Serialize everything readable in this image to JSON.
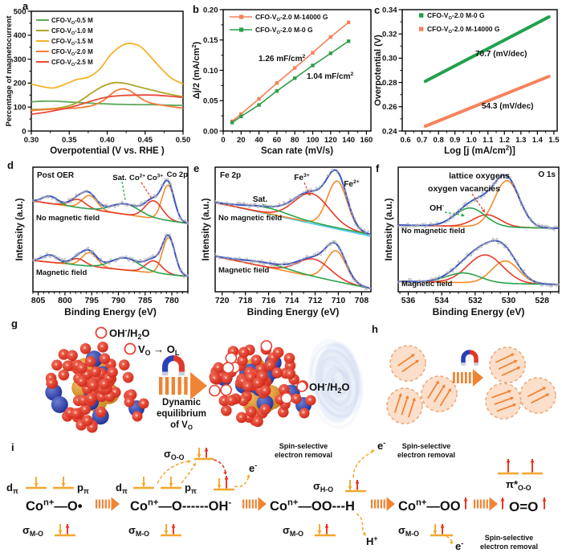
{
  "colors": {
    "blue": "#3d55c4",
    "orange": "#f28a28",
    "red": "#e83a28",
    "green": "#2aa34a",
    "cyan": "#45c8e8",
    "gray_dots": "#b0b0b0",
    "level_yellow": "#f2a72e",
    "arrow_red": "#e8301c",
    "block_arrow": "#ee8434",
    "peach_fill": "#fbdfca",
    "peach_stroke": "#efa97c"
  },
  "chart_data": [
    {
      "type": "line",
      "letter": "a",
      "xlabel": "Overpotential (V vs. RHE )",
      "ylabel": "Percentage of magnetocurrent",
      "xlim": [
        0.3,
        0.5
      ],
      "ylim": [
        0,
        500
      ],
      "xticks": [
        0.3,
        0.35,
        0.4,
        0.45,
        0.5
      ],
      "xminor": 0.025,
      "yticks": [
        0,
        100,
        200,
        300,
        400,
        500
      ],
      "yminor": 50,
      "series": [
        {
          "label": "CFO-V_{O}-0.5 M",
          "color": "#5fa85c",
          "pts": [
            [
              0.3,
              122
            ],
            [
              0.32,
              125
            ],
            [
              0.34,
              123
            ],
            [
              0.36,
              119
            ],
            [
              0.38,
              116
            ],
            [
              0.4,
              113
            ],
            [
              0.42,
              111
            ],
            [
              0.44,
              110
            ],
            [
              0.46,
              110
            ],
            [
              0.48,
              108
            ],
            [
              0.5,
              107
            ]
          ]
        },
        {
          "label": "CFO-V_{O}-1.0 M",
          "color": "#b0a62b",
          "pts": [
            [
              0.3,
              90
            ],
            [
              0.32,
              92
            ],
            [
              0.34,
              98
            ],
            [
              0.36,
              118
            ],
            [
              0.38,
              160
            ],
            [
              0.395,
              188
            ],
            [
              0.41,
              202
            ],
            [
              0.425,
              198
            ],
            [
              0.44,
              186
            ],
            [
              0.46,
              170
            ],
            [
              0.48,
              155
            ],
            [
              0.5,
              143
            ]
          ]
        },
        {
          "label": "CFO-V_{O}-1.5 M",
          "color": "#f6b32b",
          "pts": [
            [
              0.3,
              196
            ],
            [
              0.315,
              185
            ],
            [
              0.33,
              180
            ],
            [
              0.345,
              196
            ],
            [
              0.36,
              215
            ],
            [
              0.375,
              225
            ],
            [
              0.39,
              258
            ],
            [
              0.405,
              320
            ],
            [
              0.42,
              358
            ],
            [
              0.432,
              365
            ],
            [
              0.445,
              350
            ],
            [
              0.46,
              300
            ],
            [
              0.472,
              258
            ],
            [
              0.485,
              220
            ],
            [
              0.5,
              196
            ]
          ]
        },
        {
          "label": "CFO-V_{O}-2.0 M",
          "color": "#f07e3a",
          "pts": [
            [
              0.3,
              85
            ],
            [
              0.32,
              90
            ],
            [
              0.34,
              93
            ],
            [
              0.36,
              96
            ],
            [
              0.38,
              106
            ],
            [
              0.395,
              128
            ],
            [
              0.41,
              165
            ],
            [
              0.42,
              176
            ],
            [
              0.43,
              168
            ],
            [
              0.44,
              146
            ],
            [
              0.45,
              126
            ],
            [
              0.46,
              115
            ],
            [
              0.48,
              104
            ],
            [
              0.5,
              95
            ]
          ]
        },
        {
          "label": "CFO-V_{O}-2.5 M",
          "color": "#e84a38",
          "pts": [
            [
              0.3,
              70
            ],
            [
              0.32,
              79
            ],
            [
              0.34,
              91
            ],
            [
              0.36,
              106
            ],
            [
              0.38,
              126
            ],
            [
              0.4,
              142
            ],
            [
              0.42,
              148
            ],
            [
              0.44,
              150
            ],
            [
              0.46,
              150
            ],
            [
              0.48,
              146
            ],
            [
              0.5,
              140
            ]
          ]
        }
      ]
    },
    {
      "type": "scatter-line",
      "letter": "b",
      "xlabel": "Scan rate (mV/s)",
      "ylabel": "Δj/2 (mA/cm^{2})",
      "xlim": [
        0,
        165
      ],
      "ylim": [
        0,
        0.2
      ],
      "xticks": [
        0,
        20,
        40,
        60,
        80,
        100,
        120,
        140,
        160
      ],
      "xminor": 10,
      "yticks": [
        0.0,
        0.05,
        0.1,
        0.15,
        0.2
      ],
      "yminor": 0.025,
      "series": [
        {
          "label": "CFO-V_{O}-2.0 M-14000 G",
          "color": "#f5815a",
          "x": [
            10,
            20,
            40,
            60,
            80,
            100,
            120,
            140
          ],
          "y": [
            0.016,
            0.028,
            0.053,
            0.079,
            0.104,
            0.129,
            0.155,
            0.179
          ],
          "annotation": "1.26 mF/cm^{2}"
        },
        {
          "label": "CFO-V_{O}-2.0 M-0 G",
          "color": "#2f9e49",
          "x": [
            10,
            20,
            40,
            60,
            80,
            100,
            120,
            140
          ],
          "y": [
            0.014,
            0.024,
            0.043,
            0.066,
            0.087,
            0.108,
            0.128,
            0.148
          ],
          "annotation": "1.04 mF/cm^{2}"
        }
      ]
    },
    {
      "type": "line",
      "letter": "c",
      "xlabel": "Log [j (mA/cm^{2})]",
      "ylabel": "Overpotential (V)",
      "xlim": [
        0.58,
        1.52
      ],
      "ylim": [
        0.24,
        0.34
      ],
      "xticks": [
        0.6,
        0.7,
        0.8,
        0.9,
        1.0,
        1.1,
        1.2,
        1.3,
        1.4,
        1.5
      ],
      "xminor": 0.05,
      "yticks": [
        0.24,
        0.26,
        0.28,
        0.3,
        0.32,
        0.34
      ],
      "yminor": 0.01,
      "series": [
        {
          "label": "CFO-V_{O}-2.0 M-0 G",
          "color": "#22a04c",
          "x": [
            0.72,
            1.47
          ],
          "y": [
            0.281,
            0.334
          ],
          "annotation": "70.7 (mV/dec)"
        },
        {
          "label": "CFO-V_{O}-2.0 M-14000 G",
          "color": "#f5835c",
          "x": [
            0.72,
            1.47
          ],
          "y": [
            0.244,
            0.285
          ],
          "annotation": "54.3 (mV/dec)"
        }
      ]
    },
    {
      "type": "xps",
      "letter": "d",
      "title_left": "Post OER",
      "title_right": "Co 2p",
      "xlabel": "Binding Energy (eV)",
      "ylabel": "Intensity (a.u.)",
      "xlim": [
        806,
        777
      ],
      "xticks": [
        805,
        800,
        795,
        790,
        785,
        780
      ],
      "xminor": 1,
      "ann": [
        {
          "text": "Sat.",
          "color": "#2aa34a"
        },
        {
          "text": "Co^{2+}",
          "color": "#e83a28"
        },
        {
          "text": "Co^{3+}",
          "color": "#f28a28"
        }
      ],
      "groups": [
        {
          "name": "No magnetic field",
          "base": [
            54,
            82
          ],
          "labelY": 78,
          "comps": [
            {
              "color": "#f28a28",
              "peaks": [
                [
                  780.7,
                  1.15,
                  44
                ],
                [
                  795.4,
                  1.4,
                  17
                ]
              ]
            },
            {
              "color": "#e83a28",
              "peaks": [
                [
                  783.4,
                  1.6,
                  22
                ],
                [
                  797.6,
                  1.5,
                  10
                ]
              ]
            },
            {
              "color": "#2aa34a",
              "peaks": [
                [
                  788.7,
                  2.6,
                  13
                ],
                [
                  802.8,
                  1.4,
                  9
                ]
              ]
            }
          ]
        },
        {
          "name": "Magnetic field",
          "base": [
            128,
            148
          ],
          "labelY": 146,
          "comps": [
            {
              "color": "#f28a28",
              "peaks": [
                [
                  780.6,
                  1.15,
                  46
                ],
                [
                  795.4,
                  1.4,
                  17
                ]
              ]
            },
            {
              "color": "#e83a28",
              "peaks": [
                [
                  783.4,
                  1.5,
                  15
                ],
                [
                  797.6,
                  1.4,
                  8
                ]
              ]
            },
            {
              "color": "#2aa34a",
              "peaks": [
                [
                  788.7,
                  2.6,
                  15
                ],
                [
                  802.8,
                  1.4,
                  9
                ]
              ]
            }
          ]
        }
      ]
    },
    {
      "type": "xps",
      "letter": "e",
      "title_left": "Fe 2p",
      "title_right": "",
      "xlabel": "Binding Energy (eV)",
      "ylabel": "Intensity (a.u.)",
      "xlim": [
        720.6,
        707.2
      ],
      "xticks": [
        720,
        718,
        716,
        714,
        712,
        710,
        708
      ],
      "xminor": 1,
      "ann": [
        {
          "text": "Sat.",
          "color": "#2aa34a"
        },
        {
          "text": "Fe^{3+}",
          "color": "#e83a28"
        },
        {
          "text": "Fe^{2+}",
          "color": "#f28a28"
        }
      ],
      "groups": [
        {
          "name": "No magnetic field",
          "base": [
            56,
            96
          ],
          "labelY": 78,
          "cyan": true,
          "comps": [
            {
              "color": "#f28a28",
              "peaks": [
                [
                  710.1,
                  0.85,
                  58
                ]
              ]
            },
            {
              "color": "#e83a28",
              "peaks": [
                [
                  712.3,
                  1.5,
                  36
                ]
              ]
            },
            {
              "color": "#2aa34a",
              "peaks": [
                [
                  716.2,
                  1.9,
                  7
                ]
              ]
            }
          ]
        },
        {
          "name": "Magnetic field",
          "base": [
            123,
            163
          ],
          "labelY": 143,
          "comps": [
            {
              "color": "#f28a28",
              "peaks": [
                [
                  710.2,
                  0.85,
                  38
                ]
              ]
            },
            {
              "color": "#e83a28",
              "peaks": [
                [
                  712.1,
                  1.4,
                  22
                ]
              ]
            },
            {
              "color": "#2aa34a",
              "peaks": [
                [
                  716.2,
                  1.9,
                  5
                ]
              ]
            }
          ]
        }
      ]
    },
    {
      "type": "xps",
      "letter": "f",
      "title_left": "",
      "title_right": "O 1s",
      "xlabel": "Binding Energy (eV)",
      "ylabel": "Intensity (a.u.)",
      "xlim": [
        536.6,
        527.0
      ],
      "xticks": [
        536,
        534,
        532,
        530,
        528
      ],
      "xminor": 0.5,
      "ann": [
        {
          "text": "lattice oxygens",
          "color": "#f28a28"
        },
        {
          "text": "oxygen vacancies",
          "color": "#e83a28"
        },
        {
          "text": "OH^{-}",
          "color": "#2aa34a"
        }
      ],
      "groups": [
        {
          "name": "No magnetic field",
          "base": [
            84,
            88
          ],
          "labelY": 94,
          "comps": [
            {
              "color": "#f28a28",
              "peaks": [
                [
                  530.1,
                  0.75,
                  58
                ]
              ]
            },
            {
              "color": "#e83a28",
              "peaks": [
                [
                  531.3,
                  0.8,
                  15
                ]
              ]
            },
            {
              "color": "#2aa34a",
              "peaks": [
                [
                  532.3,
                  0.9,
                  23
                ]
              ]
            }
          ]
        },
        {
          "name": "Magnetic field",
          "base": [
            154,
            158
          ],
          "labelY": 160,
          "comps": [
            {
              "color": "#f28a28",
              "peaks": [
                [
                  530.2,
                  0.8,
                  28
                ]
              ]
            },
            {
              "color": "#e83a28",
              "peaks": [
                [
                  531.4,
                  1.05,
                  35
                ]
              ]
            },
            {
              "color": "#2aa34a",
              "peaks": [
                [
                  532.7,
                  1.0,
                  12
                ]
              ]
            }
          ]
        }
      ]
    }
  ],
  "panel_g": {
    "letter": "g",
    "label_oh": "OH^{-}/H_{2}O",
    "label_vo": "V_{O} → O_{L}",
    "label_oh2": "OH^{-}/H_{2}O",
    "arrow_text": [
      "Dynamic",
      "equilibrium",
      "of V_{O}"
    ]
  },
  "panel_h": {
    "letter": "h"
  },
  "panel_i": {
    "letter": "i",
    "dpi": "d_{π}",
    "ppi": "p_{π}",
    "smo": "σ_{M-O}",
    "soo": "σ_{O-O}",
    "sho": "σ_{H-O}",
    "pistar": "π*_{O-O}",
    "species": [
      "Co^{n+}—O•",
      "Co^{n+}—O------OH^{-}",
      "Co^{n+}—OO---H",
      "Co^{n+}—OO",
      "O=O"
    ],
    "electron": "e^{-}",
    "proton": "H^{+}",
    "removal_l1": "Spin-selective",
    "removal_l2": "electron removal"
  }
}
